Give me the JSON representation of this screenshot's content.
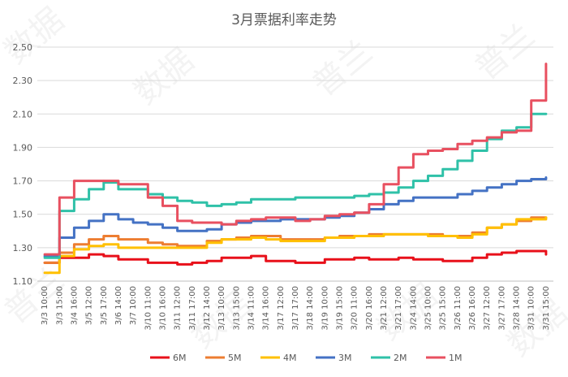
{
  "chart_data": {
    "type": "line",
    "title": "3月票据利率走势",
    "xlabel": "",
    "ylabel": "",
    "ylim": [
      1.1,
      2.5
    ],
    "yticks": [
      "1.10",
      "1.30",
      "1.50",
      "1.70",
      "1.90",
      "2.10",
      "2.30",
      "2.50"
    ],
    "grid": true,
    "legend_position": "bottom",
    "x": [
      "3/3 10:00",
      "3/3 15:00",
      "3/4 16:00",
      "3/5 12:00",
      "3/5 17:00",
      "3/6 14:00",
      "3/7 10:00",
      "3/10 11:00",
      "3/10 16:00",
      "3/11 12:00",
      "3/11 17:00",
      "3/12 14:00",
      "3/13 10:00",
      "3/13 15:00",
      "3/14 11:00",
      "3/14 16:00",
      "3/17 12:00",
      "3/17 17:00",
      "3/18 14:00",
      "3/19 10:00",
      "3/19 15:00",
      "3/20 11:00",
      "3/20 16:00",
      "3/21 12:00",
      "3/21 17:00",
      "3/24 14:00",
      "3/25 10:00",
      "3/25 15:00",
      "3/26 11:00",
      "3/26 16:00",
      "3/27 12:00",
      "3/27 17:00",
      "3/28 14:00",
      "3/31 10:00",
      "3/31 15:00"
    ],
    "series": [
      {
        "name": "6M",
        "color": "#e8101a",
        "values": [
          1.21,
          1.24,
          1.24,
          1.26,
          1.25,
          1.23,
          1.23,
          1.21,
          1.21,
          1.2,
          1.21,
          1.22,
          1.24,
          1.24,
          1.25,
          1.22,
          1.22,
          1.21,
          1.21,
          1.23,
          1.23,
          1.24,
          1.23,
          1.23,
          1.24,
          1.23,
          1.23,
          1.22,
          1.22,
          1.24,
          1.26,
          1.27,
          1.28,
          1.28,
          1.26
        ]
      },
      {
        "name": "5M",
        "color": "#ed7d31",
        "values": [
          1.21,
          1.27,
          1.32,
          1.35,
          1.37,
          1.35,
          1.35,
          1.33,
          1.32,
          1.31,
          1.31,
          1.34,
          1.35,
          1.36,
          1.37,
          1.37,
          1.35,
          1.35,
          1.35,
          1.36,
          1.37,
          1.37,
          1.38,
          1.38,
          1.38,
          1.38,
          1.38,
          1.37,
          1.37,
          1.39,
          1.42,
          1.44,
          1.46,
          1.48,
          1.48
        ]
      },
      {
        "name": "4M",
        "color": "#ffc000",
        "values": [
          1.15,
          1.25,
          1.29,
          1.31,
          1.32,
          1.3,
          1.3,
          1.3,
          1.3,
          1.3,
          1.3,
          1.33,
          1.35,
          1.35,
          1.36,
          1.35,
          1.34,
          1.34,
          1.34,
          1.36,
          1.36,
          1.37,
          1.37,
          1.38,
          1.38,
          1.38,
          1.37,
          1.37,
          1.36,
          1.38,
          1.42,
          1.44,
          1.47,
          1.47,
          1.48
        ]
      },
      {
        "name": "3M",
        "color": "#4472c4",
        "values": [
          1.25,
          1.36,
          1.42,
          1.46,
          1.5,
          1.47,
          1.45,
          1.44,
          1.42,
          1.4,
          1.4,
          1.41,
          1.44,
          1.45,
          1.46,
          1.46,
          1.47,
          1.47,
          1.47,
          1.48,
          1.49,
          1.51,
          1.53,
          1.56,
          1.58,
          1.6,
          1.6,
          1.6,
          1.62,
          1.64,
          1.66,
          1.68,
          1.7,
          1.71,
          1.72
        ]
      },
      {
        "name": "2M",
        "color": "#2fc1a8",
        "values": [
          1.24,
          1.52,
          1.59,
          1.65,
          1.69,
          1.65,
          1.65,
          1.62,
          1.6,
          1.58,
          1.57,
          1.55,
          1.56,
          1.57,
          1.59,
          1.59,
          1.59,
          1.6,
          1.6,
          1.6,
          1.6,
          1.61,
          1.62,
          1.63,
          1.66,
          1.7,
          1.73,
          1.77,
          1.82,
          1.88,
          1.95,
          2.0,
          2.02,
          2.1,
          2.1
        ]
      },
      {
        "name": "1M",
        "color": "#e85060",
        "values": [
          1.26,
          1.6,
          1.7,
          1.7,
          1.7,
          1.68,
          1.68,
          1.6,
          1.55,
          1.46,
          1.45,
          1.45,
          1.44,
          1.46,
          1.47,
          1.48,
          1.48,
          1.46,
          1.47,
          1.49,
          1.5,
          1.51,
          1.56,
          1.68,
          1.78,
          1.86,
          1.88,
          1.89,
          1.92,
          1.94,
          1.96,
          1.99,
          2.0,
          2.18,
          2.4
        ]
      }
    ]
  }
}
